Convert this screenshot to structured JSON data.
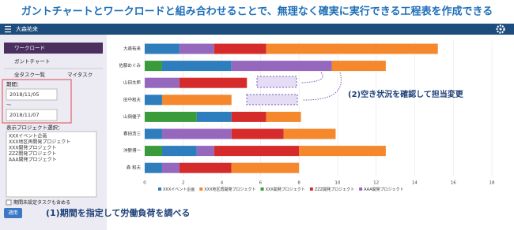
{
  "banner": {
    "title": "ガントチャートとワークロードと組み合わせることで、無理なく確実に実行できる工程表を作成できる"
  },
  "header": {
    "user": "大森祐来"
  },
  "sidebar": {
    "nav": [
      "ワークロード",
      "ガントチャート"
    ],
    "tabs": [
      "全タスク一覧",
      "マイタスク"
    ],
    "period_label": "期間：",
    "start_date": "2018/11/05",
    "separator": "〜",
    "end_date": "2018/11/07",
    "project_label": "表示プロジェクト選択：",
    "projects": [
      "XXXイベント企画",
      "XXX地区再開発プロジェクト",
      "XXX開発プロジェクト",
      "ZZZ開発プロジェクト",
      "AAA開発プロジェクト"
    ],
    "checkbox_label": "期間未設定タスクも含める",
    "apply": "適用"
  },
  "annotations": [
    "(2)空き状況を確認して担当変更",
    "(1)期間を指定して労働負荷を調べる"
  ],
  "chart_data": {
    "type": "bar",
    "stacked": true,
    "categories": [
      "大森祐来",
      "佐藤めぐみ",
      "山田太郎",
      "田中和夫",
      "山岡優子",
      "春田浩三",
      "沖野博一",
      "森 和夫"
    ],
    "series": [
      {
        "name": "XXXイベント企画",
        "color": "#2e7dbd",
        "values": [
          1.8,
          3.6,
          0,
          0.9,
          1.8,
          0.9,
          1.8,
          0.9
        ]
      },
      {
        "name": "XXX地区再開発プロジェクト",
        "color": "#f5872c",
        "values": [
          8.9,
          2.8,
          0,
          3.6,
          1.8,
          2.7,
          4.5,
          3.5
        ]
      },
      {
        "name": "XXX開発プロジェクト",
        "color": "#3a9b3a",
        "values": [
          0,
          0.9,
          0,
          0,
          2.7,
          0,
          0.9,
          0
        ]
      },
      {
        "name": "ZZZ開発プロジェクト",
        "color": "#d52b2b",
        "values": [
          2.7,
          0,
          3.5,
          0,
          1.8,
          2.7,
          4.4,
          2.7
        ]
      },
      {
        "name": "AAA開発プロジェクト",
        "color": "#9568be",
        "values": [
          1.8,
          5.2,
          1.8,
          0,
          0,
          3.6,
          0.9,
          0.9
        ]
      }
    ],
    "xlim": [
      0,
      18
    ],
    "xticks": [
      0,
      2,
      4,
      6,
      8,
      10,
      12,
      14,
      16,
      18
    ],
    "grid": true
  }
}
